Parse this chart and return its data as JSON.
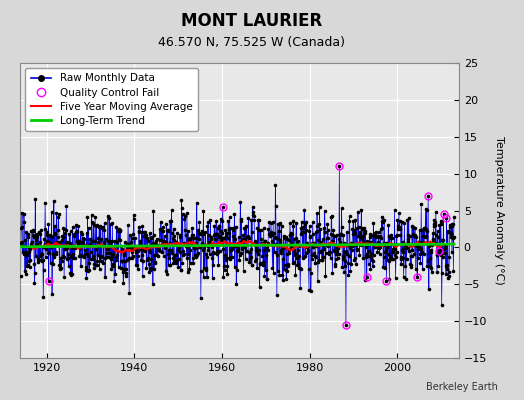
{
  "title": "MONT LAURIER",
  "subtitle": "46.570 N, 75.525 W (Canada)",
  "attribution": "Berkeley Earth",
  "ylabel": "Temperature Anomaly (°C)",
  "xlim": [
    1914,
    2014
  ],
  "ylim": [
    -15,
    25
  ],
  "yticks": [
    -15,
    -10,
    -5,
    0,
    5,
    10,
    15,
    20,
    25
  ],
  "xticks": [
    1920,
    1940,
    1960,
    1980,
    2000
  ],
  "bg_color": "#d8d8d8",
  "plot_bg_color": "#e8e8e8",
  "raw_line_color": "#0000dd",
  "raw_marker_color": "#000000",
  "qc_fail_color": "#ff00ff",
  "moving_avg_color": "#ff0000",
  "trend_color": "#00cc00",
  "seed": 17,
  "start_year": 1914.0,
  "n_months": 1188
}
